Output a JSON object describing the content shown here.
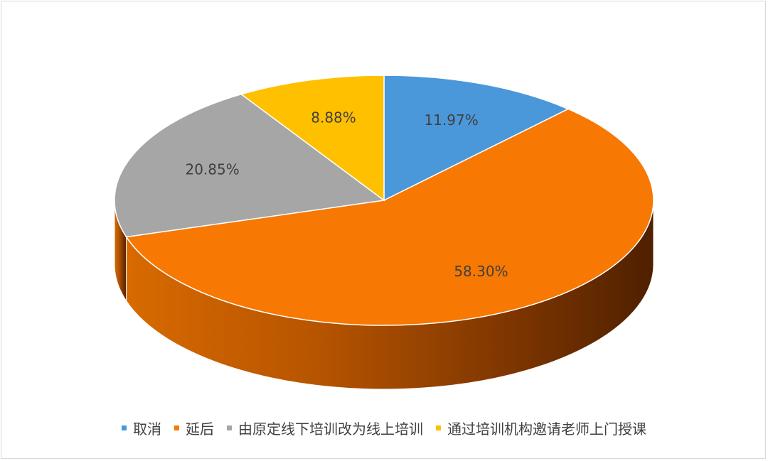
{
  "chart_data": {
    "type": "pie",
    "categories": [
      "取消",
      "延后",
      "由原定线下培训改为线上培训",
      "通过培训机构邀请老师上门授课"
    ],
    "values": [
      11.97,
      58.3,
      20.85,
      8.88
    ],
    "data_labels": [
      "11.97%",
      "58.30%",
      "20.85%",
      "8.88%"
    ],
    "colors": [
      "#4a98d9",
      "#f77802",
      "#a6a6a6",
      "#ffc000"
    ],
    "legend_position": "bottom",
    "style": "3d"
  }
}
